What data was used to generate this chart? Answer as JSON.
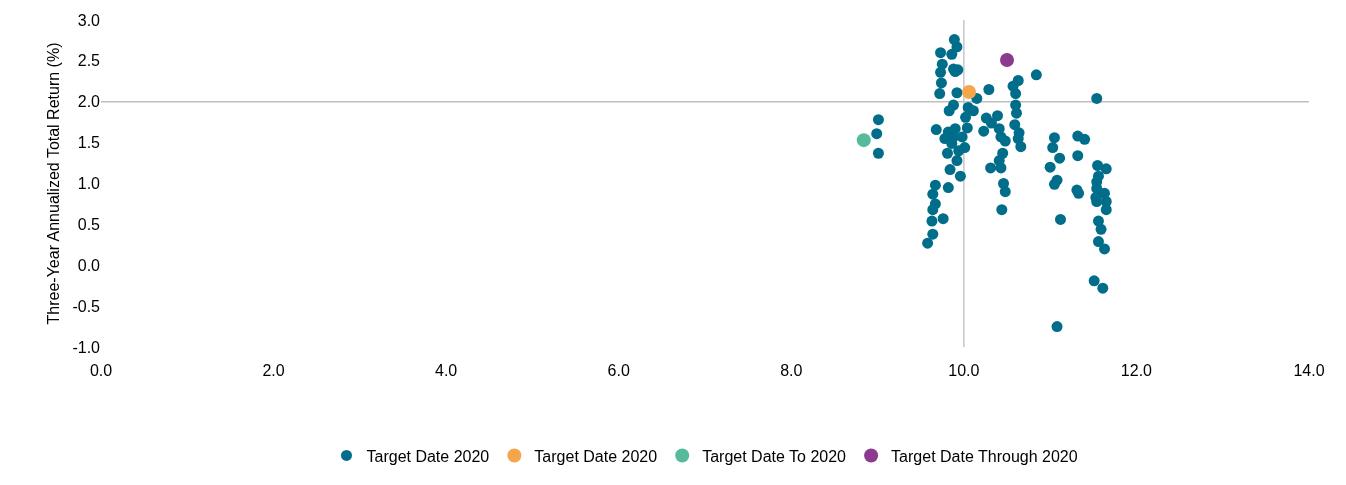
{
  "chart_data": {
    "type": "scatter",
    "ylabel": "Three-Year Annualized Total Return (%)",
    "xlim": [
      0,
      14
    ],
    "xticks": [
      {
        "value": 0,
        "label": "0.0"
      },
      {
        "value": 2,
        "label": "2.0"
      },
      {
        "value": 4,
        "label": "4.0"
      },
      {
        "value": 6,
        "label": "6.0"
      },
      {
        "value": 8,
        "label": "8.0"
      },
      {
        "value": 10,
        "label": "10.0"
      },
      {
        "value": 12,
        "label": "12.0"
      },
      {
        "value": 14,
        "label": "14.0"
      }
    ],
    "ylim": [
      -1,
      3
    ],
    "yticks": [
      {
        "value": -1,
        "label": "-1.0"
      },
      {
        "value": -0.5,
        "label": "-0.5"
      },
      {
        "value": 0,
        "label": "0.0"
      },
      {
        "value": 0.5,
        "label": "0.5"
      },
      {
        "value": 1,
        "label": "1.0"
      },
      {
        "value": 1.5,
        "label": "1.5"
      },
      {
        "value": 2,
        "label": "2.0"
      },
      {
        "value": 2.5,
        "label": "2.5"
      },
      {
        "value": 3,
        "label": "3.0"
      }
    ],
    "grid": false,
    "legend": "bottom",
    "marker": "circle",
    "ref_lines": [
      {
        "axis": "y",
        "value": 2,
        "label": null,
        "color": "#bfbfbf"
      },
      {
        "axis": "x",
        "value": 10,
        "label": null,
        "color": "#bfbfbf"
      }
    ],
    "series": [
      {
        "name": "Target Date 2020",
        "color": "#006e8a",
        "x": [
          9.89,
          9.92,
          9.73,
          9.86,
          9.75,
          9.88,
          9.93,
          9.9,
          9.73,
          9.74,
          9.72,
          9.92,
          10.15,
          10.29,
          9.88,
          9.83,
          10.05,
          10.11,
          10.02,
          10.26,
          10.39,
          10.32,
          10.23,
          10.41,
          10.43,
          10.48,
          9.68,
          9.82,
          9.9,
          10.04,
          9.78,
          9.88,
          9.98,
          9.86,
          9.94,
          10.01,
          9.81,
          9.92,
          9.84,
          9.96,
          10.31,
          10.43,
          10.45,
          10.41,
          10.46,
          10.48,
          10.44,
          9.67,
          9.82,
          9.64,
          9.67,
          9.64,
          9.76,
          9.63,
          9.64,
          9.58,
          10.84,
          10.63,
          10.57,
          10.6,
          10.6,
          10.61,
          10.59,
          10.64,
          10.63,
          10.66,
          11.54,
          11.05,
          11.03,
          11.11,
          11.0,
          11.08,
          11.05,
          11.32,
          11.4,
          11.32,
          11.31,
          11.33,
          11.12,
          11.08,
          11.55,
          11.65,
          11.56,
          11.54,
          11.54,
          11.63,
          11.53,
          11.65,
          11.54,
          11.65,
          11.56,
          11.59,
          11.56,
          11.63,
          11.51,
          11.61,
          9.01,
          8.99,
          9.01
        ],
        "values": [
          2.76,
          2.67,
          2.6,
          2.58,
          2.46,
          2.4,
          2.39,
          2.37,
          2.36,
          2.23,
          2.1,
          2.11,
          2.04,
          2.15,
          1.96,
          1.89,
          1.93,
          1.89,
          1.81,
          1.8,
          1.83,
          1.74,
          1.64,
          1.67,
          1.57,
          1.52,
          1.66,
          1.63,
          1.67,
          1.68,
          1.55,
          1.57,
          1.57,
          1.49,
          1.4,
          1.44,
          1.37,
          1.28,
          1.17,
          1.09,
          1.19,
          1.19,
          1.37,
          1.28,
          1.0,
          0.9,
          0.68,
          0.98,
          0.95,
          0.87,
          0.75,
          0.68,
          0.57,
          0.54,
          0.38,
          0.27,
          2.33,
          2.26,
          2.19,
          2.1,
          1.96,
          1.86,
          1.72,
          1.62,
          1.55,
          1.45,
          2.04,
          1.56,
          1.44,
          1.31,
          1.2,
          1.04,
          0.99,
          1.58,
          1.54,
          1.34,
          0.92,
          0.88,
          0.56,
          -0.75,
          1.22,
          1.18,
          1.09,
          1.02,
          0.94,
          0.88,
          0.83,
          0.78,
          0.78,
          0.68,
          0.54,
          0.44,
          0.29,
          0.2,
          -0.19,
          -0.28,
          1.78,
          1.61,
          1.37
        ]
      },
      {
        "name": "Target Date 2020",
        "color": "#f5a54a",
        "x": [
          10.06
        ],
        "values": [
          2.12
        ]
      },
      {
        "name": "Target Date To 2020",
        "color": "#55bb9c",
        "x": [
          8.84
        ],
        "values": [
          1.53
        ]
      },
      {
        "name": "Target Date Through 2020",
        "color": "#8b3a8f",
        "x": [
          10.5
        ],
        "values": [
          2.51
        ]
      }
    ]
  }
}
